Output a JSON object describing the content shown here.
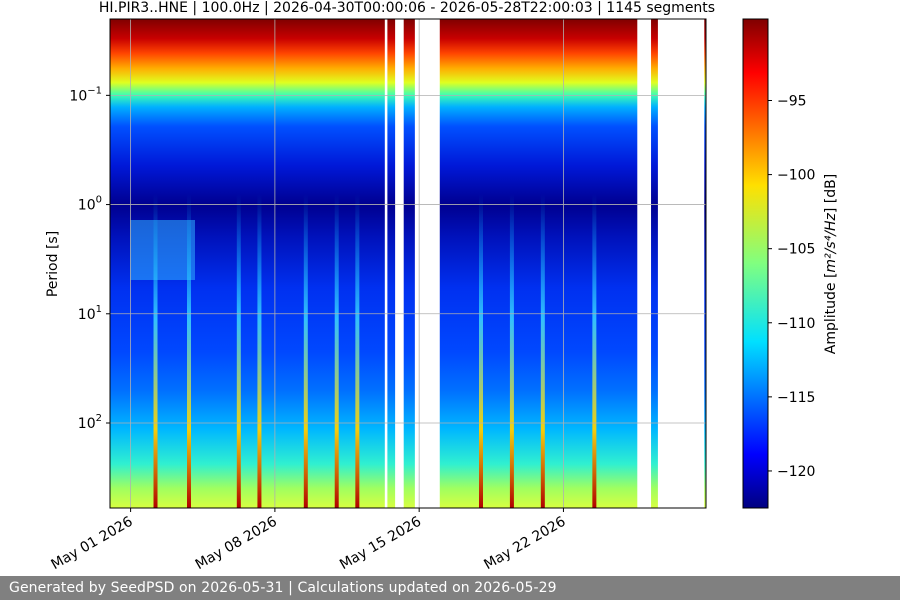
{
  "chart_data": {
    "type": "heatmap",
    "title": "HI.PIR3..HNE | 100.0Hz | 2026-04-30T00:00:06 - 2026-05-28T22:00:03 | 1145 segments",
    "xlabel": "",
    "ylabel": "Period [s]",
    "x_scale": "time",
    "x_range": [
      "2026-04-30T00:00:06",
      "2026-05-28T22:00:03"
    ],
    "x_ticks": [
      "May 01 2026",
      "May 08 2026",
      "May 15 2026",
      "May 22 2026"
    ],
    "x_tick_dates": [
      "2026-05-01",
      "2026-05-08",
      "2026-05-15",
      "2026-05-22"
    ],
    "y_scale": "log",
    "y_inverted": true,
    "y_range": [
      0.02,
      600
    ],
    "y_tick_values": [
      0.1,
      1,
      10,
      100
    ],
    "y_ticks": [
      {
        "base": "10",
        "exp": "−1"
      },
      {
        "base": "10",
        "exp": "0"
      },
      {
        "base": "10",
        "exp": "1"
      },
      {
        "base": "10",
        "exp": "2"
      }
    ],
    "grid": true,
    "colormap": "jet",
    "colorbar": {
      "label_prefix": "Amplitude [",
      "label_unit": "m²/s⁴/Hz",
      "label_suffix": "] [dB]",
      "range": [
        -122.5,
        -89.5
      ],
      "tick_values": [
        -95,
        -100,
        -105,
        -110,
        -115,
        -120
      ],
      "ticks": [
        "−95",
        "−100",
        "−105",
        "−110",
        "−115",
        "−120"
      ]
    },
    "data_gaps": [
      [
        "2026-05-13T08:00:00",
        "2026-05-13T11:00:00"
      ],
      [
        "2026-05-13T20:00:00",
        "2026-05-14T06:00:00"
      ],
      [
        "2026-05-14T19:00:00",
        "2026-05-16T00:00:00"
      ],
      [
        "2026-05-25T14:00:00",
        "2026-05-26T06:00:00"
      ],
      [
        "2026-05-26T14:00:00",
        "2026-05-28T20:00:00"
      ]
    ],
    "spikes": [
      "2026-05-02T05:00:00",
      "2026-05-03T20:00:00",
      "2026-05-06T06:00:00",
      "2026-05-07T06:00:00",
      "2026-05-09T12:00:00",
      "2026-05-11T00:00:00",
      "2026-05-12T00:00:00",
      "2026-05-18T00:00:00",
      "2026-05-19T12:00:00",
      "2026-05-21T00:00:00",
      "2026-05-23T12:00:00"
    ]
  },
  "footer": {
    "text": "Generated by SeedPSD on 2026-05-31 | Calculations updated on 2026-05-29"
  }
}
